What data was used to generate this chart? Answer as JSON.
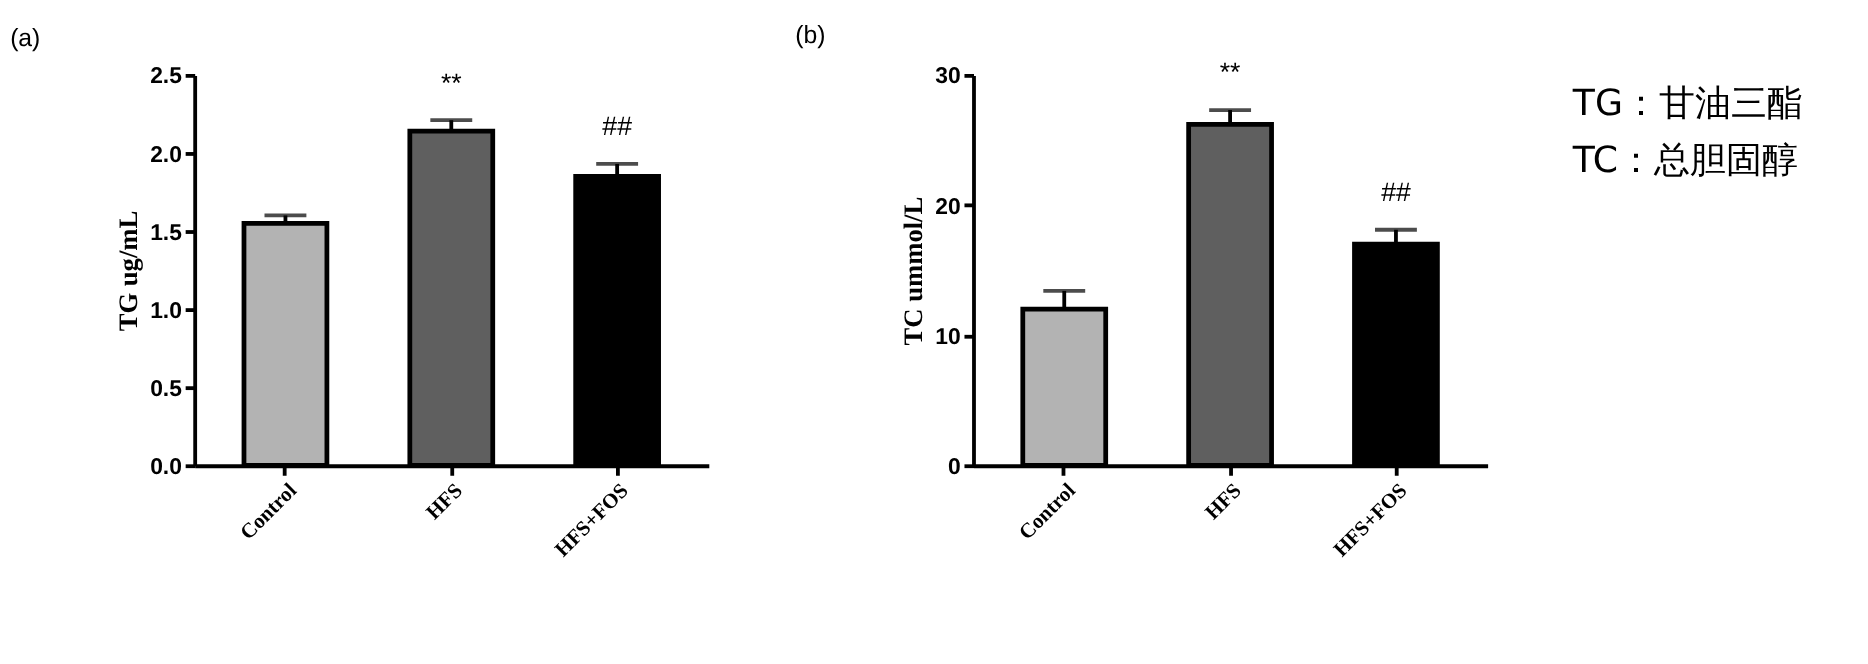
{
  "chart_data": [
    {
      "type": "bar",
      "title": "(a)",
      "ylabel": "TG ug/mL",
      "categories": [
        "Control",
        "HFS",
        "HFS+FOS"
      ],
      "values": [
        1.55,
        2.14,
        1.85
      ],
      "errors": [
        0.05,
        0.07,
        0.08
      ],
      "colors": [
        "#b3b3b3",
        "#5f5f5f",
        "#000000"
      ],
      "ylim": [
        0,
        2.5
      ],
      "yticks": [
        {
          "value": 0,
          "label": "0.0"
        },
        0.5,
        {
          "value": 1,
          "label": "1.0"
        },
        1.5,
        {
          "value": 2,
          "label": "2.0"
        },
        2.5
      ],
      "grid": false,
      "annotations": [
        "**",
        "##"
      ]
    },
    {
      "type": "bar",
      "title": "(b)",
      "ylabel": "TC ummol/L",
      "categories": [
        "Control",
        "HFS",
        "HFS+FOS"
      ],
      "values": [
        12,
        26.2,
        17
      ],
      "errors": [
        1.4,
        1.1,
        1.1
      ],
      "colors": [
        "#b3b3b3",
        "#5f5f5f",
        "#000000"
      ],
      "ylim": [
        0,
        30
      ],
      "yticks": [
        0,
        10,
        20,
        30
      ],
      "grid": false,
      "annotations": [
        "**",
        "##"
      ]
    },
    {
      "type": "other",
      "annotations": [
        "TG：甘油三酯",
        "TC：总胆固醇"
      ]
    }
  ]
}
